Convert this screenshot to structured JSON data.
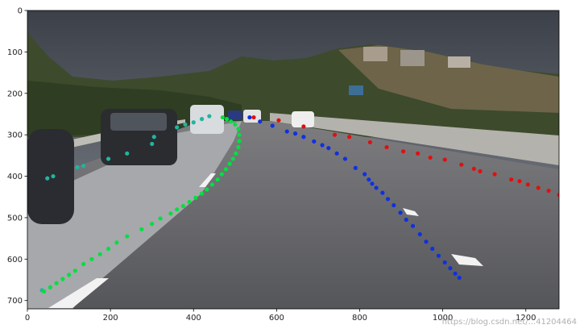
{
  "chart_data": {
    "type": "scatter",
    "background": "road-scene-photo",
    "xlim": [
      0,
      1280
    ],
    "ylim": [
      720,
      0
    ],
    "x_ticks": [
      0,
      200,
      400,
      600,
      800,
      1000,
      1200
    ],
    "y_ticks": [
      0,
      100,
      200,
      300,
      400,
      500,
      600,
      700
    ],
    "grid": false,
    "series": [
      {
        "color": "#1fb5a0",
        "points": [
          [
            35,
            675
          ],
          [
            48,
            405
          ],
          [
            62,
            400
          ],
          [
            120,
            378
          ],
          [
            135,
            375
          ],
          [
            195,
            358
          ],
          [
            240,
            345
          ],
          [
            300,
            322
          ],
          [
            305,
            305
          ],
          [
            360,
            282
          ],
          [
            380,
            275
          ],
          [
            400,
            270
          ],
          [
            420,
            262
          ],
          [
            438,
            255
          ]
        ]
      },
      {
        "color": "#00e040",
        "points": [
          [
            40,
            678
          ],
          [
            55,
            668
          ],
          [
            70,
            658
          ],
          [
            85,
            648
          ],
          [
            100,
            638
          ],
          [
            115,
            628
          ],
          [
            135,
            612
          ],
          [
            155,
            600
          ],
          [
            175,
            588
          ],
          [
            195,
            575
          ],
          [
            215,
            560
          ],
          [
            240,
            545
          ],
          [
            275,
            528
          ],
          [
            300,
            515
          ],
          [
            320,
            502
          ],
          [
            345,
            490
          ],
          [
            360,
            480
          ],
          [
            375,
            472
          ],
          [
            390,
            462
          ],
          [
            405,
            452
          ],
          [
            420,
            442
          ],
          [
            432,
            432
          ],
          [
            445,
            420
          ],
          [
            458,
            408
          ],
          [
            468,
            395
          ],
          [
            478,
            383
          ],
          [
            487,
            370
          ],
          [
            495,
            358
          ],
          [
            502,
            345
          ],
          [
            508,
            330
          ],
          [
            510,
            315
          ],
          [
            510,
            300
          ],
          [
            508,
            286
          ],
          [
            500,
            275
          ],
          [
            490,
            268
          ],
          [
            480,
            262
          ],
          [
            470,
            258
          ]
        ]
      },
      {
        "color": "#1030e0",
        "points": [
          [
            535,
            258
          ],
          [
            560,
            268
          ],
          [
            590,
            278
          ],
          [
            625,
            292
          ],
          [
            645,
            297
          ],
          [
            665,
            305
          ],
          [
            690,
            316
          ],
          [
            710,
            325
          ],
          [
            725,
            332
          ],
          [
            745,
            345
          ],
          [
            765,
            358
          ],
          [
            790,
            380
          ],
          [
            812,
            395
          ],
          [
            822,
            408
          ],
          [
            830,
            418
          ],
          [
            840,
            428
          ],
          [
            855,
            440
          ],
          [
            868,
            455
          ],
          [
            882,
            470
          ],
          [
            898,
            488
          ],
          [
            912,
            505
          ],
          [
            928,
            520
          ],
          [
            945,
            540
          ],
          [
            960,
            558
          ],
          [
            975,
            575
          ],
          [
            990,
            592
          ],
          [
            1005,
            608
          ],
          [
            1018,
            622
          ],
          [
            1030,
            635
          ],
          [
            1040,
            645
          ]
        ]
      },
      {
        "color": "#e01010",
        "points": [
          [
            545,
            258
          ],
          [
            605,
            265
          ],
          [
            665,
            280
          ],
          [
            740,
            300
          ],
          [
            775,
            305
          ],
          [
            825,
            318
          ],
          [
            865,
            330
          ],
          [
            905,
            340
          ],
          [
            940,
            345
          ],
          [
            970,
            355
          ],
          [
            1005,
            360
          ],
          [
            1045,
            372
          ],
          [
            1075,
            382
          ],
          [
            1090,
            388
          ],
          [
            1125,
            395
          ],
          [
            1165,
            408
          ],
          [
            1185,
            412
          ],
          [
            1205,
            420
          ],
          [
            1230,
            428
          ],
          [
            1255,
            435
          ],
          [
            1280,
            445
          ]
        ]
      }
    ]
  },
  "watermark": "https://blog.csdn.net/...41204464"
}
